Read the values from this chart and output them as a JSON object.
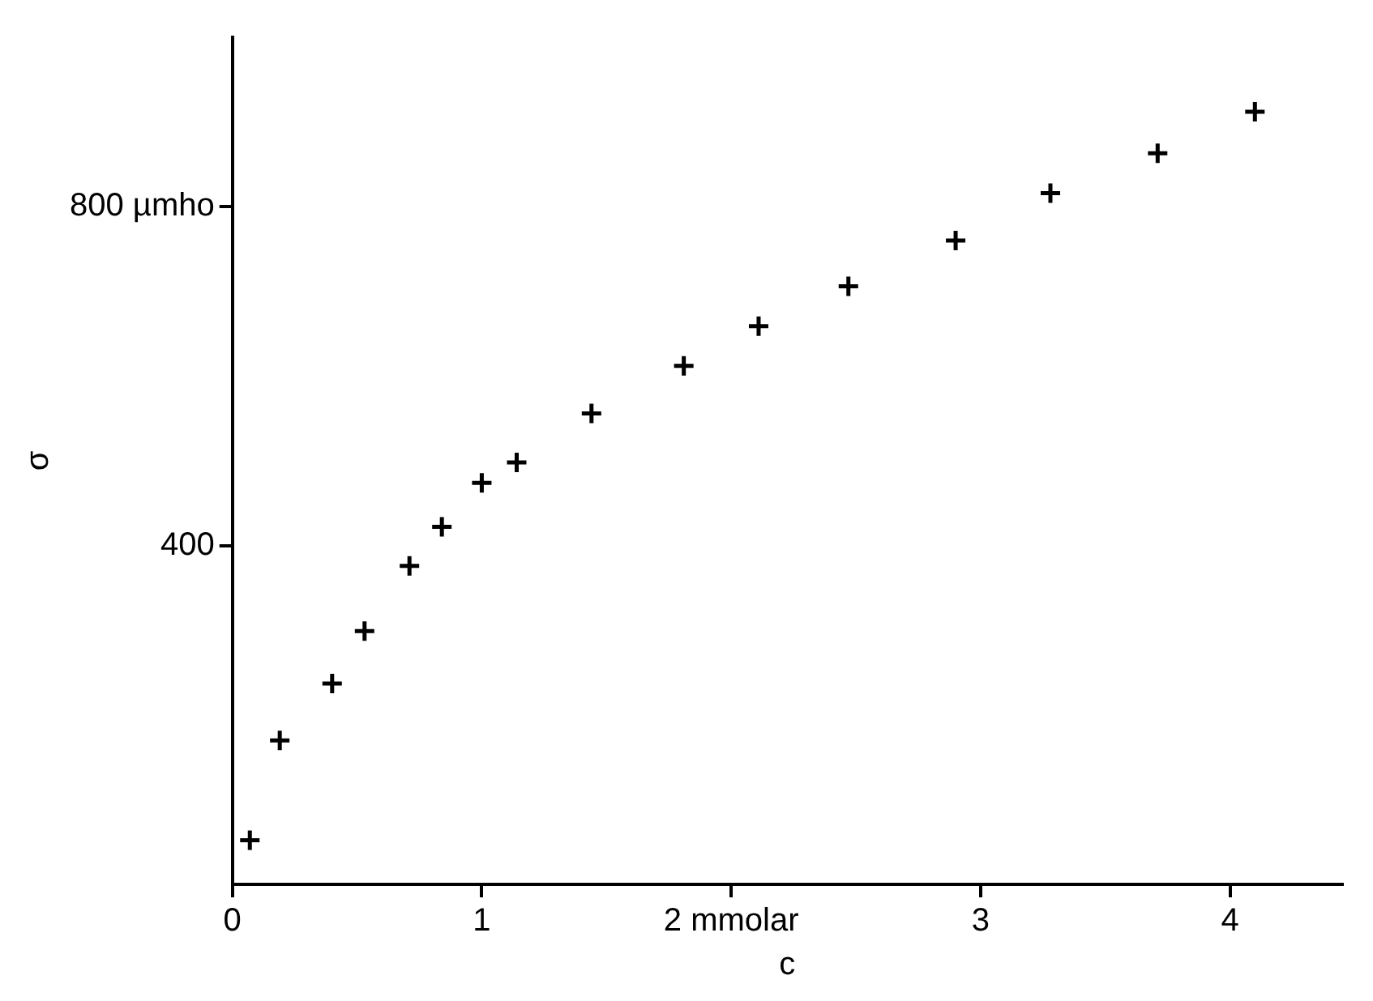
{
  "chart_data": {
    "type": "scatter",
    "xlabel": "c",
    "ylabel": "σ",
    "x": [
      0.07,
      0.19,
      0.4,
      0.53,
      0.71,
      0.84,
      1.0,
      1.14,
      1.44,
      1.81,
      2.11,
      2.47,
      2.9,
      3.28,
      3.71,
      4.1
    ],
    "values": [
      52,
      170,
      237,
      299,
      376,
      422,
      474,
      498,
      556,
      612,
      659,
      706,
      760,
      816,
      863,
      912
    ],
    "color": "#000000",
    "marker": "cross",
    "grid": false,
    "legend": false,
    "xlim": [
      0,
      4.45
    ],
    "xticks": [
      0,
      1,
      {
        "value": 2,
        "label": "2 mmolar"
      },
      3,
      4
    ],
    "ylim": [
      0,
      1000
    ],
    "yticks": [
      400,
      {
        "value": 800,
        "label": "800 µmho"
      }
    ]
  }
}
